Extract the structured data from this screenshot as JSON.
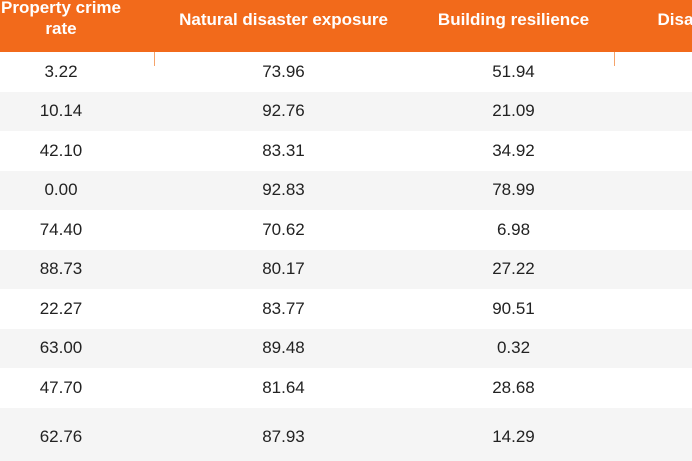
{
  "table": {
    "columns": [
      "Property crime rate",
      "Natural disaster exposure",
      "Building resilience",
      "Disaster"
    ],
    "rows": [
      [
        "3.22",
        "73.96",
        "51.94",
        ""
      ],
      [
        "10.14",
        "92.76",
        "21.09",
        ""
      ],
      [
        "42.10",
        "83.31",
        "34.92",
        ""
      ],
      [
        "0.00",
        "92.83",
        "78.99",
        ""
      ],
      [
        "74.40",
        "70.62",
        "6.98",
        ""
      ],
      [
        "88.73",
        "80.17",
        "27.22",
        ""
      ],
      [
        "22.27",
        "83.77",
        "90.51",
        ""
      ],
      [
        "63.00",
        "89.48",
        "0.32",
        ""
      ],
      [
        "47.70",
        "81.64",
        "28.68",
        ""
      ],
      [
        "62.76",
        "87.93",
        "14.29",
        ""
      ]
    ]
  },
  "colors": {
    "header_background": "#f26a1b",
    "header_text": "#ffffff",
    "row_alt_background": "#f5f5f5"
  }
}
